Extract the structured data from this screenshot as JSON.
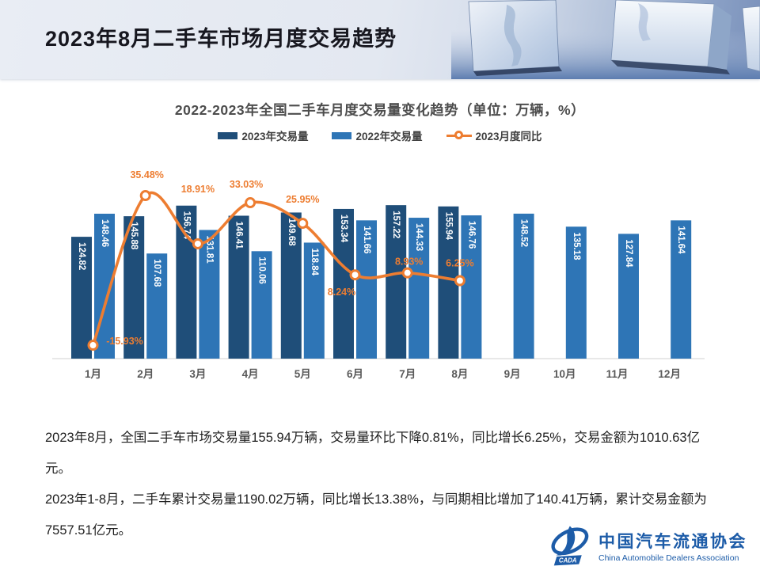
{
  "header": {
    "title": "2023年8月二手车市场月度交易趋势"
  },
  "chart": {
    "title": "2022-2023年全国二手车月度交易量变化趋势（单位：万辆，%）"
  },
  "chart_data": {
    "type": "combo",
    "categories": [
      "1月",
      "2月",
      "3月",
      "4月",
      "5月",
      "6月",
      "7月",
      "8月",
      "9月",
      "10月",
      "11月",
      "12月"
    ],
    "series": [
      {
        "name": "2023年交易量",
        "type": "bar",
        "color": "#1f4e79",
        "values": [
          124.82,
          145.88,
          156.74,
          146.41,
          149.68,
          153.34,
          157.22,
          155.94,
          null,
          null,
          null,
          null
        ]
      },
      {
        "name": "2022年交易量",
        "type": "bar",
        "color": "#2e75b6",
        "values": [
          148.46,
          107.68,
          131.81,
          110.06,
          118.84,
          141.66,
          144.33,
          146.76,
          148.52,
          135.18,
          127.84,
          141.64
        ]
      },
      {
        "name": "2023月度同比",
        "type": "line",
        "color": "#ed7d31",
        "unit": "%",
        "values": [
          -15.93,
          35.48,
          18.91,
          33.03,
          25.95,
          8.24,
          8.93,
          6.25,
          null,
          null,
          null,
          null
        ]
      }
    ],
    "value_unit": "万辆",
    "grid": false,
    "legend_position": "top"
  },
  "summary": {
    "paragraphs": [
      "2023年8月，全国二手车市场交易量155.94万辆，交易量环比下降0.81%，同比增长6.25%，交易金额为1010.63亿元。",
      "2023年1-8月，二手车累计交易量1190.02万辆，同比增长13.38%，与同期相比增加了140.41万辆，累计交易金额为7557.51亿元。"
    ]
  },
  "footer_logo": {
    "cn": "中国汽车流通协会",
    "en": "China Automobile Dealers Association",
    "abbr": "CADA"
  }
}
